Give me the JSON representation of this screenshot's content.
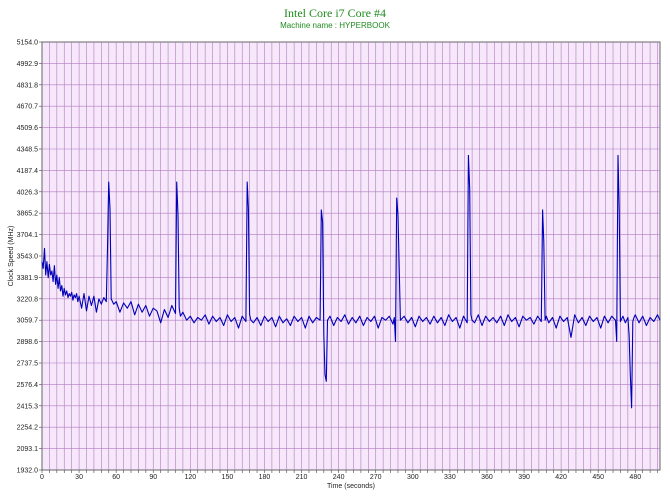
{
  "chart_data": {
    "type": "line",
    "title": "Intel Core i7 Core #4",
    "subtitle": "Machine name : HYPERBOOK",
    "xlabel": "Time (seconds)",
    "ylabel": "Clock Speed (MHz)",
    "xlim": [
      0,
      500
    ],
    "ylim": [
      1932.0,
      5154.0
    ],
    "x_ticks": [
      "0",
      "30",
      "60",
      "90",
      "120",
      "150",
      "180",
      "210",
      "240",
      "270",
      "300",
      "330",
      "360",
      "390",
      "420",
      "450",
      "480"
    ],
    "y_ticks": [
      "5154.0",
      "4992.9",
      "4831.8",
      "4670.7",
      "4509.6",
      "4348.5",
      "4187.4",
      "4026.3",
      "3865.2",
      "3704.1",
      "3543.0",
      "3381.9",
      "3220.8",
      "3059.7",
      "2898.6",
      "2737.5",
      "2576.4",
      "2415.3",
      "2254.2",
      "2093.1",
      "1932.0"
    ],
    "grid": true,
    "colors": {
      "background": "#f6e7fa",
      "grid": "#b07cc0",
      "line": "#0000b8",
      "title": "#1f8a1f"
    },
    "series": [
      {
        "x": [
          0,
          1,
          2,
          3,
          4,
          5,
          6,
          7,
          8,
          9,
          10,
          11,
          12,
          13,
          14,
          15,
          16,
          17,
          18,
          19,
          20,
          21,
          22,
          23,
          24,
          25,
          26,
          27,
          28,
          29,
          30,
          32,
          34,
          36,
          38,
          40,
          42,
          44,
          46,
          48,
          50,
          52,
          53,
          54,
          55,
          56,
          58,
          60,
          63,
          66,
          69,
          72,
          75,
          78,
          81,
          84,
          87,
          90,
          93,
          96,
          99,
          102,
          105,
          108,
          109,
          110,
          111,
          112,
          114,
          117,
          120,
          123,
          126,
          129,
          132,
          135,
          138,
          141,
          144,
          147,
          150,
          153,
          156,
          159,
          162,
          165,
          166,
          167,
          168,
          169,
          171,
          174,
          177,
          180,
          183,
          186,
          189,
          192,
          195,
          198,
          201,
          204,
          207,
          210,
          213,
          216,
          219,
          222,
          225,
          226,
          227,
          228,
          229,
          230,
          231,
          233,
          236,
          239,
          242,
          245,
          248,
          251,
          254,
          257,
          260,
          263,
          266,
          269,
          272,
          275,
          278,
          281,
          284,
          285,
          286,
          287,
          288,
          290,
          293,
          296,
          299,
          302,
          305,
          308,
          311,
          314,
          317,
          320,
          323,
          326,
          329,
          332,
          335,
          338,
          341,
          344,
          345,
          346,
          347,
          348,
          350,
          353,
          356,
          359,
          362,
          365,
          368,
          371,
          374,
          377,
          380,
          383,
          386,
          389,
          392,
          395,
          398,
          401,
          404,
          405,
          406,
          407,
          408,
          410,
          413,
          416,
          419,
          422,
          425,
          428,
          431,
          434,
          437,
          440,
          443,
          446,
          449,
          452,
          455,
          458,
          461,
          464,
          465,
          466,
          467,
          468,
          470,
          472,
          474,
          475,
          476,
          477,
          478,
          479,
          480,
          483,
          486,
          489,
          492,
          495,
          498,
          500
        ],
        "y": [
          3500,
          3450,
          3600,
          3400,
          3500,
          3380,
          3480,
          3400,
          3430,
          3350,
          3470,
          3330,
          3400,
          3300,
          3380,
          3280,
          3320,
          3240,
          3300,
          3250,
          3280,
          3230,
          3260,
          3240,
          3270,
          3210,
          3250,
          3230,
          3260,
          3200,
          3240,
          3150,
          3260,
          3130,
          3240,
          3170,
          3240,
          3120,
          3220,
          3180,
          3230,
          3200,
          3600,
          4100,
          3900,
          3220,
          3180,
          3200,
          3120,
          3190,
          3150,
          3200,
          3100,
          3180,
          3120,
          3170,
          3090,
          3150,
          3130,
          3040,
          3140,
          3080,
          3170,
          3110,
          4100,
          3850,
          3150,
          3090,
          3120,
          3060,
          3090,
          3040,
          3080,
          3060,
          3100,
          3030,
          3090,
          3050,
          3080,
          3020,
          3100,
          3050,
          3080,
          3000,
          3090,
          3050,
          4100,
          3900,
          3100,
          3060,
          3040,
          3080,
          3020,
          3090,
          3050,
          3080,
          3010,
          3090,
          3040,
          3070,
          3020,
          3090,
          3050,
          3080,
          3000,
          3090,
          3040,
          3080,
          3060,
          3890,
          3800,
          2950,
          2650,
          2600,
          3060,
          3090,
          3020,
          3080,
          3050,
          3100,
          3030,
          3080,
          3040,
          3090,
          3020,
          3080,
          3050,
          3090,
          3000,
          3080,
          3060,
          3090,
          3030,
          3080,
          2900,
          3980,
          3850,
          3060,
          3090,
          3040,
          3080,
          3010,
          3090,
          3050,
          3080,
          3030,
          3090,
          3040,
          3080,
          3020,
          3100,
          3050,
          3080,
          3000,
          3090,
          3040,
          4300,
          4050,
          3100,
          3060,
          3040,
          3100,
          3020,
          3090,
          3050,
          3080,
          3040,
          3090,
          3020,
          3100,
          3050,
          3080,
          3010,
          3090,
          3060,
          3080,
          3030,
          3090,
          3050,
          3890,
          3650,
          3060,
          3090,
          3040,
          3080,
          3000,
          3090,
          3050,
          3080,
          2930,
          3100,
          3040,
          3080,
          3020,
          3090,
          3050,
          3080,
          3000,
          3090,
          3040,
          3090,
          3060,
          2900,
          4300,
          3900,
          3050,
          3090,
          3040,
          3080,
          2950,
          2650,
          2400,
          3050,
          3080,
          3100,
          3040,
          3090,
          3020,
          3080,
          3050,
          3100,
          3060
        ]
      }
    ]
  }
}
